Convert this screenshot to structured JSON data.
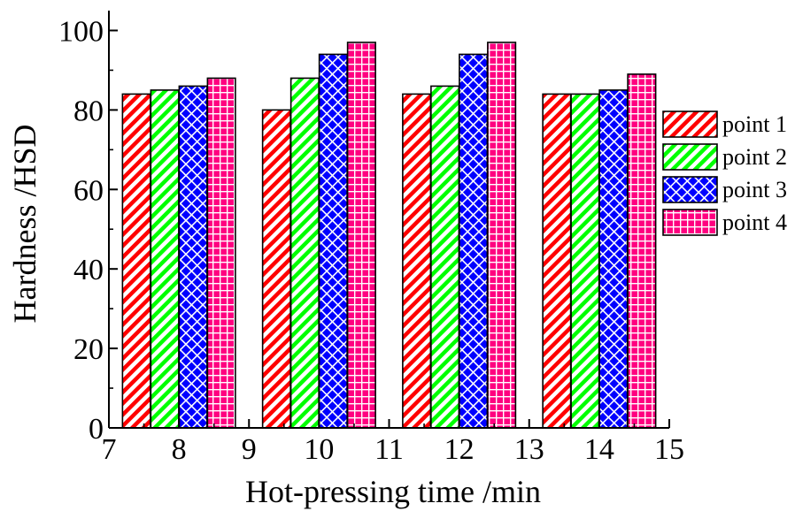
{
  "chart_data": {
    "type": "bar",
    "title": "",
    "xlabel": "Hot-pressing time /min",
    "ylabel": "Hardness /HSD",
    "xlim": [
      7,
      15
    ],
    "ylim": [
      0,
      105
    ],
    "x_ticks": [
      "7",
      "8",
      "9",
      "10",
      "11",
      "12",
      "13",
      "14",
      "15"
    ],
    "y_ticks": [
      "0",
      "20",
      "40",
      "60",
      "80",
      "100"
    ],
    "categories": [
      8,
      10,
      12,
      14
    ],
    "legend_position": "right",
    "grid": false,
    "series": [
      {
        "name": "point 1",
        "values": [
          84,
          80,
          84,
          84
        ],
        "color": "#ff0000",
        "pattern": "diagonal-hatch"
      },
      {
        "name": "point 2",
        "values": [
          85,
          88,
          86,
          84
        ],
        "color": "#00ff00",
        "pattern": "diagonal-hatch"
      },
      {
        "name": "point 3",
        "values": [
          86,
          94,
          94,
          85
        ],
        "color": "#0000ff",
        "pattern": "cross-hatch"
      },
      {
        "name": "point 4",
        "values": [
          88,
          97,
          97,
          89
        ],
        "color": "#ff0080",
        "pattern": "grid"
      }
    ]
  }
}
